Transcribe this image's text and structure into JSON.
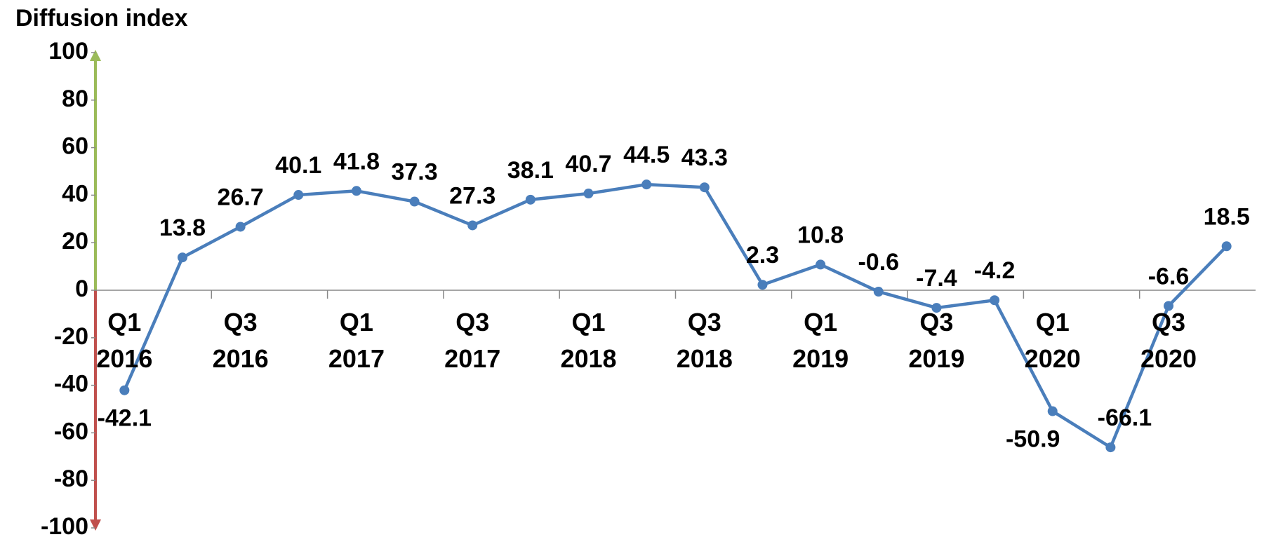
{
  "chart_data": {
    "type": "line",
    "title": "Diffusion index",
    "categories": [
      "Q1 2016",
      null,
      "Q3 2016",
      null,
      "Q1 2017",
      null,
      "Q3 2017",
      null,
      "Q1 2018",
      null,
      "Q3 2018",
      null,
      "Q1 2019",
      null,
      "Q3 2019",
      null,
      "Q1 2020",
      null,
      "Q3 2020",
      null
    ],
    "series": [
      {
        "name": "Diffusion index",
        "color": "#4a7ebb",
        "values": [
          -42.1,
          13.8,
          26.7,
          40.1,
          41.8,
          37.3,
          27.3,
          38.1,
          40.7,
          44.5,
          43.3,
          2.3,
          10.8,
          -0.6,
          -7.4,
          -4.2,
          -50.9,
          -66.1,
          -6.6,
          18.5
        ]
      }
    ],
    "ylim": [
      -100,
      100
    ],
    "yticks": [
      -100,
      -80,
      -60,
      -40,
      -20,
      0,
      20,
      40,
      60,
      80,
      100
    ],
    "grid": false
  }
}
